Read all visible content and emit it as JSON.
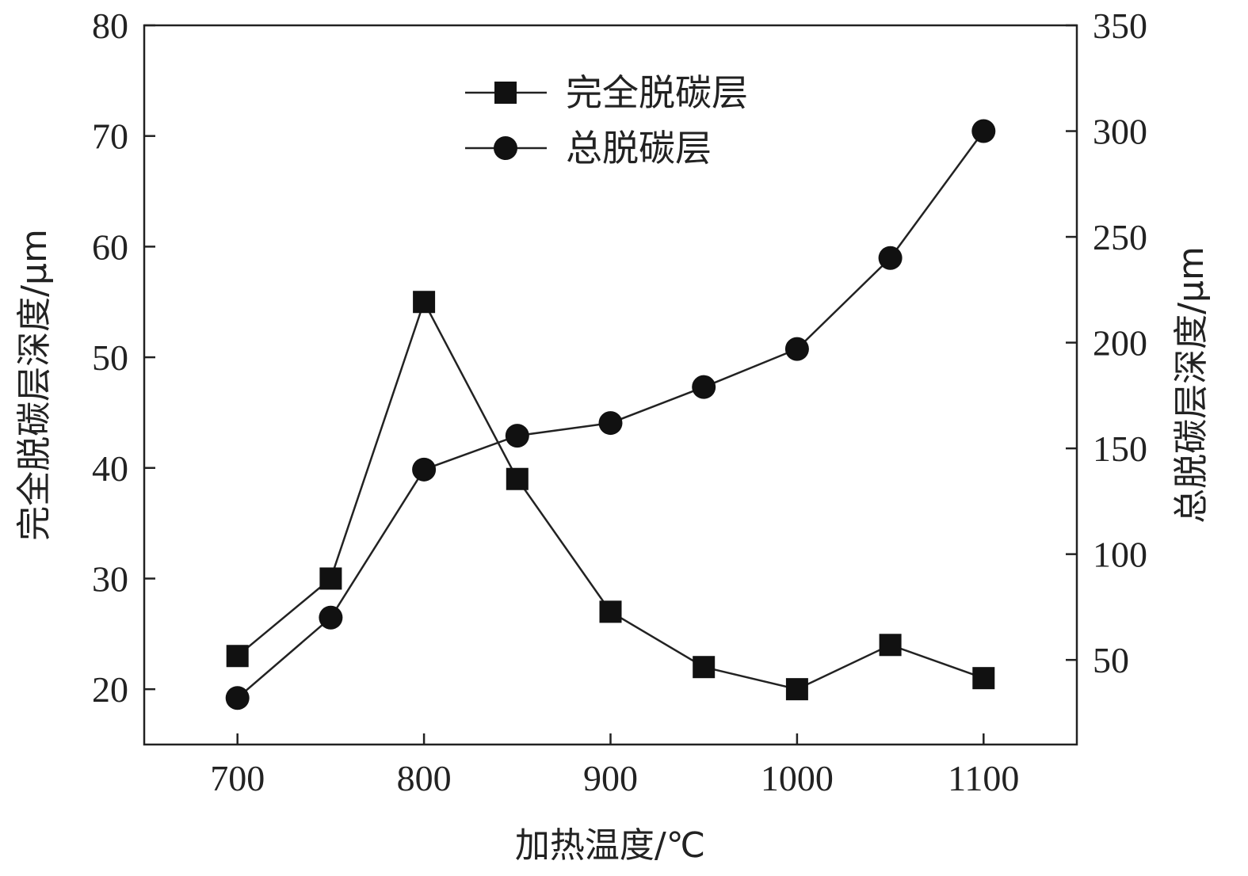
{
  "chart_data": {
    "type": "line",
    "title": "",
    "xlabel": "加热温度/℃",
    "ylabel_left": "完全脱碳层深度/μm",
    "ylabel_right": "总脱碳层深度/μm",
    "x": [
      700,
      750,
      800,
      850,
      900,
      950,
      1000,
      1050,
      1100
    ],
    "x_ticks": [
      700,
      800,
      900,
      1000,
      1100
    ],
    "x_tick_labels": [
      "700",
      "800",
      "900",
      "1000",
      "1100"
    ],
    "xlim": [
      650,
      1150
    ],
    "y_left_ticks": [
      20,
      30,
      40,
      50,
      60,
      70,
      80
    ],
    "y_left_tick_labels": [
      "20",
      "30",
      "40",
      "50",
      "60",
      "70",
      "80"
    ],
    "ylim_left": [
      15,
      80
    ],
    "y_right_ticks": [
      50,
      100,
      150,
      200,
      250,
      300,
      350
    ],
    "y_right_tick_labels": [
      "50",
      "100",
      "150",
      "200",
      "250",
      "300",
      "350"
    ],
    "ylim_right": [
      10,
      350
    ],
    "grid": false,
    "legend_position": "top-center",
    "series": [
      {
        "name": "完全脱碳层",
        "axis": "left",
        "marker": "square",
        "values": [
          23,
          30,
          55,
          39,
          27,
          22,
          20,
          24,
          21
        ]
      },
      {
        "name": "总脱碳层",
        "axis": "right",
        "marker": "circle",
        "values": [
          32,
          70,
          140,
          156,
          162,
          179,
          197,
          240,
          300
        ]
      }
    ]
  }
}
